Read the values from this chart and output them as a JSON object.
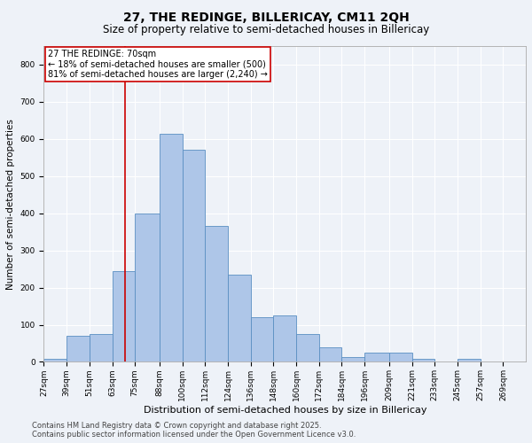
{
  "title": "27, THE REDINGE, BILLERICAY, CM11 2QH",
  "subtitle": "Size of property relative to semi-detached houses in Billericay",
  "xlabel": "Distribution of semi-detached houses by size in Billericay",
  "ylabel": "Number of semi-detached properties",
  "bin_labels": [
    "27sqm",
    "39sqm",
    "51sqm",
    "63sqm",
    "75sqm",
    "88sqm",
    "100sqm",
    "112sqm",
    "124sqm",
    "136sqm",
    "148sqm",
    "160sqm",
    "172sqm",
    "184sqm",
    "196sqm",
    "209sqm",
    "221sqm",
    "233sqm",
    "245sqm",
    "257sqm",
    "269sqm"
  ],
  "bin_edges": [
    27,
    39,
    51,
    63,
    75,
    88,
    100,
    112,
    124,
    136,
    148,
    160,
    172,
    184,
    196,
    209,
    221,
    233,
    245,
    257,
    269,
    281
  ],
  "values": [
    8,
    70,
    75,
    245,
    400,
    615,
    570,
    365,
    235,
    120,
    125,
    75,
    40,
    12,
    25,
    25,
    8,
    2,
    8,
    2,
    2
  ],
  "bar_facecolor": "#aec6e8",
  "bar_edgecolor": "#5a8fc2",
  "vline_x": 70,
  "vline_color": "#cc0000",
  "annotation_title": "27 THE REDINGE: 70sqm",
  "annotation_line1": "← 18% of semi-detached houses are smaller (500)",
  "annotation_line2": "81% of semi-detached houses are larger (2,240) →",
  "annotation_box_edgecolor": "#cc0000",
  "ylim": [
    0,
    850
  ],
  "yticks": [
    0,
    100,
    200,
    300,
    400,
    500,
    600,
    700,
    800
  ],
  "background_color": "#eef2f8",
  "grid_color": "#ffffff",
  "footer_line1": "Contains HM Land Registry data © Crown copyright and database right 2025.",
  "footer_line2": "Contains public sector information licensed under the Open Government Licence v3.0.",
  "title_fontsize": 10,
  "subtitle_fontsize": 8.5,
  "xlabel_fontsize": 8,
  "ylabel_fontsize": 7.5,
  "tick_fontsize": 6.5,
  "footer_fontsize": 6,
  "annotation_fontsize": 7
}
